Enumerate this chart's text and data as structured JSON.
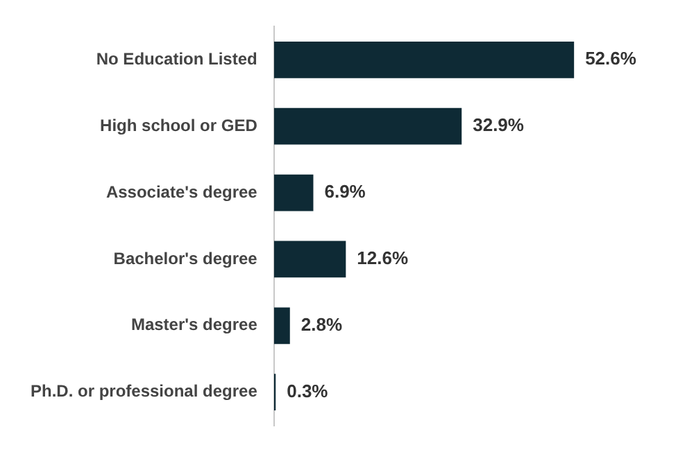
{
  "chart_data": {
    "type": "bar",
    "orientation": "horizontal",
    "categories": [
      "No Education Listed",
      "High school or GED",
      "Associate's degree",
      "Bachelor's degree",
      "Master's degree",
      "Ph.D. or professional degree"
    ],
    "values": [
      52.6,
      32.9,
      6.9,
      12.6,
      2.8,
      0.3
    ],
    "value_labels": [
      "52.6%",
      "32.9%",
      "6.9%",
      "12.6%",
      "2.8%",
      "0.3%"
    ],
    "color": "#0e2a35",
    "tick_labels": "y"
  }
}
